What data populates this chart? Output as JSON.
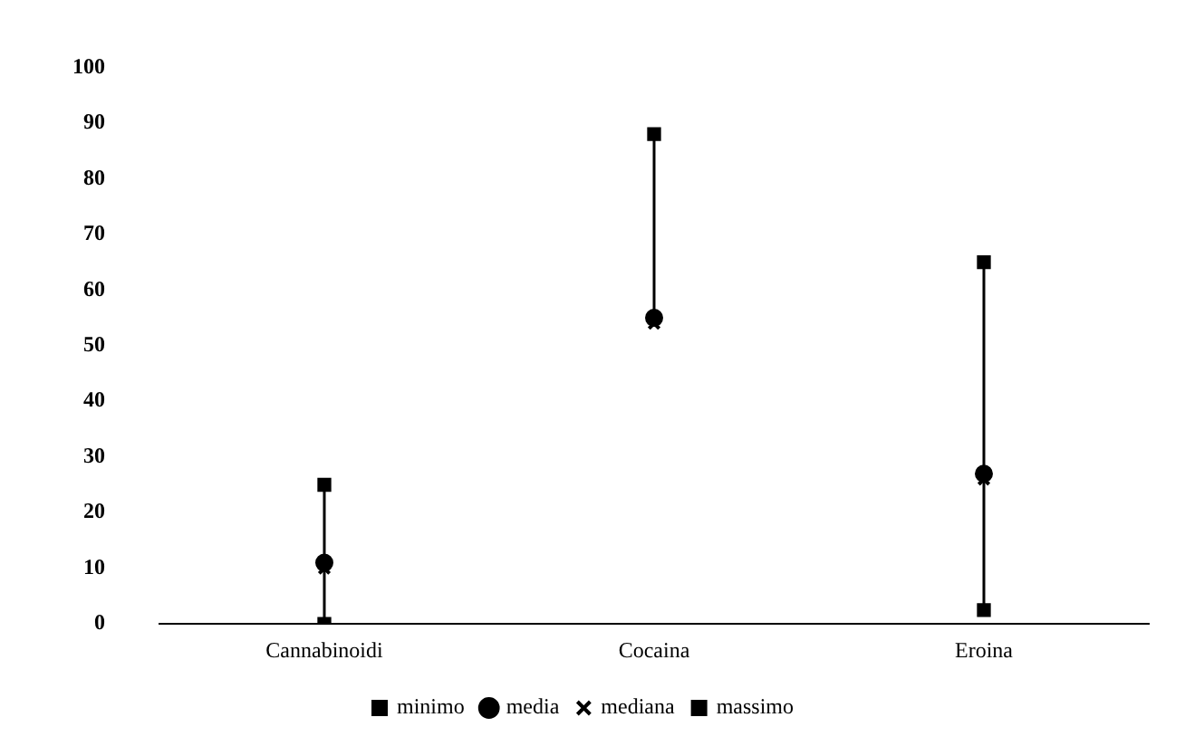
{
  "chart_data": {
    "type": "scatter",
    "categories": [
      "Cannabinoidi",
      "Cocaina",
      "Eroina"
    ],
    "ylim": [
      0,
      100
    ],
    "yticks": [
      0,
      10,
      20,
      30,
      40,
      50,
      60,
      70,
      80,
      90,
      100
    ],
    "grid": false,
    "legend": "bottom",
    "series": [
      {
        "name": "minimo",
        "color": "#000000",
        "marker": "square",
        "x": [
          "Cannabinoidi",
          "Cocaina",
          "Eroina"
        ],
        "values": [
          0,
          null,
          2.5
        ]
      },
      {
        "name": "media",
        "color": "#000000",
        "marker": "circle",
        "x": [
          "Cannabinoidi",
          "Cocaina",
          "Eroina"
        ],
        "values": [
          11,
          55,
          27
        ]
      },
      {
        "name": "mediana",
        "color": "#000000",
        "marker": "cross",
        "x": [
          "Cannabinoidi",
          "Cocaina",
          "Eroina"
        ],
        "values": [
          10,
          54,
          26
        ]
      },
      {
        "name": "massimo",
        "color": "#000000",
        "marker": "square",
        "x": [
          "Cannabinoidi",
          "Cocaina",
          "Eroina"
        ],
        "values": [
          25,
          88,
          65
        ]
      }
    ]
  }
}
